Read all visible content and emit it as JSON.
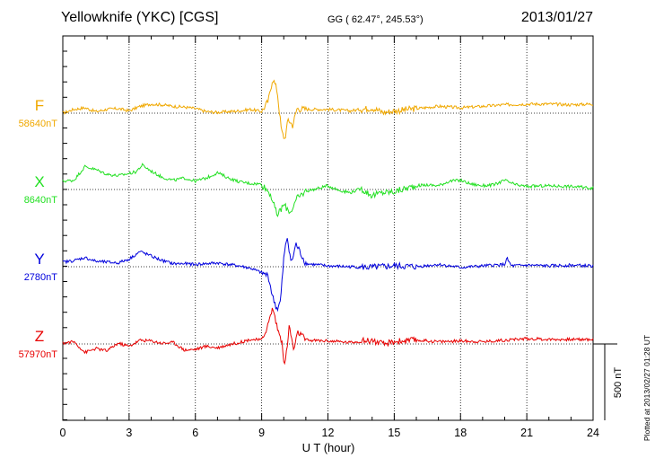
{
  "header": {
    "station": "Yellowknife (YKC)  [CGS]",
    "coords": "GG ( 62.47°, 245.53°)",
    "date": "2013/01/27",
    "plotted": "Plotted at 2013/02/27 01:28 UT"
  },
  "chart_data": {
    "type": "line",
    "xlabel": "U T (hour)",
    "xlim": [
      0,
      24
    ],
    "xticks": [
      0,
      3,
      6,
      9,
      12,
      15,
      18,
      21,
      24
    ],
    "xtick_labels": [
      "0",
      "3",
      "6",
      "9",
      "12",
      "15",
      "18",
      "21",
      "24"
    ],
    "grid": "dotted vertical lines every 3 hours, dotted baseline per component",
    "scale_bar": {
      "label": "500 nT",
      "value_nT": 500
    },
    "series": [
      {
        "name": "F",
        "baseline_label": "58640nT",
        "baseline_nT": 58640,
        "color": "#f0a800",
        "points": [
          [
            0,
            0
          ],
          [
            0.5,
            25
          ],
          [
            1,
            35
          ],
          [
            1.5,
            10
          ],
          [
            2,
            25
          ],
          [
            2.5,
            30
          ],
          [
            3,
            15
          ],
          [
            3.5,
            45
          ],
          [
            4,
            60
          ],
          [
            4.5,
            55
          ],
          [
            5,
            45
          ],
          [
            5.5,
            40
          ],
          [
            6,
            30
          ],
          [
            6.5,
            10
          ],
          [
            7,
            5
          ],
          [
            7.5,
            10
          ],
          [
            8,
            15
          ],
          [
            8.5,
            25
          ],
          [
            9,
            10
          ],
          [
            9.3,
            80
          ],
          [
            9.5,
            230
          ],
          [
            9.7,
            150
          ],
          [
            9.9,
            -120
          ],
          [
            10.05,
            -170
          ],
          [
            10.2,
            -40
          ],
          [
            10.4,
            -80
          ],
          [
            10.6,
            30
          ],
          [
            11,
            25
          ],
          [
            12,
            25
          ],
          [
            13,
            15
          ],
          [
            14,
            35
          ],
          [
            14.5,
            5
          ],
          [
            15,
            15
          ],
          [
            16,
            30
          ],
          [
            17,
            45
          ],
          [
            18,
            35
          ],
          [
            19,
            45
          ],
          [
            20,
            55
          ],
          [
            21,
            60
          ],
          [
            22,
            60
          ],
          [
            23,
            55
          ],
          [
            24,
            60
          ]
        ]
      },
      {
        "name": "X",
        "baseline_label": "8640nT",
        "baseline_nT": 8640,
        "color": "#22e022",
        "points": [
          [
            0,
            55
          ],
          [
            0.5,
            60
          ],
          [
            1,
            150
          ],
          [
            1.5,
            130
          ],
          [
            2,
            100
          ],
          [
            2.5,
            90
          ],
          [
            3,
            105
          ],
          [
            3.3,
            115
          ],
          [
            3.6,
            160
          ],
          [
            4,
            120
          ],
          [
            4.5,
            80
          ],
          [
            5,
            60
          ],
          [
            5.5,
            75
          ],
          [
            6,
            55
          ],
          [
            6.5,
            75
          ],
          [
            7,
            110
          ],
          [
            7.5,
            75
          ],
          [
            8,
            50
          ],
          [
            8.5,
            40
          ],
          [
            9,
            35
          ],
          [
            9.4,
            -30
          ],
          [
            9.7,
            -170
          ],
          [
            10,
            -100
          ],
          [
            10.3,
            -150
          ],
          [
            10.6,
            -60
          ],
          [
            11,
            -10
          ],
          [
            11.5,
            5
          ],
          [
            12,
            25
          ],
          [
            12.5,
            -5
          ],
          [
            13,
            -20
          ],
          [
            13.5,
            5
          ],
          [
            14,
            -40
          ],
          [
            14.5,
            -20
          ],
          [
            15,
            -15
          ],
          [
            15.5,
            5
          ],
          [
            16,
            25
          ],
          [
            16.5,
            30
          ],
          [
            17,
            25
          ],
          [
            17.5,
            55
          ],
          [
            18,
            60
          ],
          [
            18.5,
            35
          ],
          [
            19,
            25
          ],
          [
            19.5,
            30
          ],
          [
            20,
            60
          ],
          [
            20.5,
            30
          ],
          [
            21,
            20
          ],
          [
            22,
            25
          ],
          [
            23,
            20
          ],
          [
            24,
            10
          ]
        ]
      },
      {
        "name": "Y",
        "baseline_label": "2780nT",
        "baseline_nT": 2780,
        "color": "#0000dd",
        "points": [
          [
            0,
            30
          ],
          [
            0.5,
            40
          ],
          [
            1,
            60
          ],
          [
            1.5,
            35
          ],
          [
            2,
            30
          ],
          [
            2.5,
            25
          ],
          [
            3,
            50
          ],
          [
            3.5,
            100
          ],
          [
            4,
            70
          ],
          [
            4.5,
            40
          ],
          [
            5,
            20
          ],
          [
            5.5,
            20
          ],
          [
            6,
            15
          ],
          [
            6.5,
            20
          ],
          [
            7,
            25
          ],
          [
            7.5,
            15
          ],
          [
            8,
            5
          ],
          [
            8.5,
            -10
          ],
          [
            9,
            -40
          ],
          [
            9.3,
            -60
          ],
          [
            9.5,
            -200
          ],
          [
            9.7,
            -280
          ],
          [
            9.85,
            -230
          ],
          [
            10,
            50
          ],
          [
            10.15,
            200
          ],
          [
            10.35,
            20
          ],
          [
            10.55,
            150
          ],
          [
            11,
            20
          ],
          [
            12,
            5
          ],
          [
            13,
            0
          ],
          [
            14,
            -5
          ],
          [
            15,
            5
          ],
          [
            16,
            0
          ],
          [
            17,
            15
          ],
          [
            18,
            -5
          ],
          [
            19,
            5
          ],
          [
            20,
            15
          ],
          [
            20.1,
            55
          ],
          [
            20.3,
            5
          ],
          [
            21,
            10
          ],
          [
            22,
            5
          ],
          [
            23,
            10
          ],
          [
            24,
            5
          ]
        ]
      },
      {
        "name": "Z",
        "baseline_label": "57970nT",
        "baseline_nT": 57970,
        "color": "#e80000",
        "points": [
          [
            0,
            5
          ],
          [
            0.5,
            15
          ],
          [
            1,
            -55
          ],
          [
            1.5,
            -30
          ],
          [
            2,
            -45
          ],
          [
            2.5,
            5
          ],
          [
            3,
            -15
          ],
          [
            3.5,
            25
          ],
          [
            4,
            20
          ],
          [
            4.5,
            5
          ],
          [
            5,
            10
          ],
          [
            5.5,
            -40
          ],
          [
            6,
            -35
          ],
          [
            6.5,
            -15
          ],
          [
            7,
            -25
          ],
          [
            7.5,
            -5
          ],
          [
            8,
            10
          ],
          [
            8.5,
            30
          ],
          [
            9,
            25
          ],
          [
            9.3,
            130
          ],
          [
            9.5,
            240
          ],
          [
            9.7,
            110
          ],
          [
            9.9,
            20
          ],
          [
            10.05,
            -150
          ],
          [
            10.25,
            120
          ],
          [
            10.45,
            -40
          ],
          [
            10.65,
            80
          ],
          [
            11,
            25
          ],
          [
            12,
            20
          ],
          [
            13,
            10
          ],
          [
            14,
            25
          ],
          [
            14.5,
            -5
          ],
          [
            15,
            15
          ],
          [
            16,
            25
          ],
          [
            17,
            15
          ],
          [
            18,
            20
          ],
          [
            19,
            15
          ],
          [
            20,
            25
          ],
          [
            21,
            35
          ],
          [
            22,
            30
          ],
          [
            23,
            30
          ],
          [
            24,
            30
          ]
        ]
      }
    ]
  }
}
